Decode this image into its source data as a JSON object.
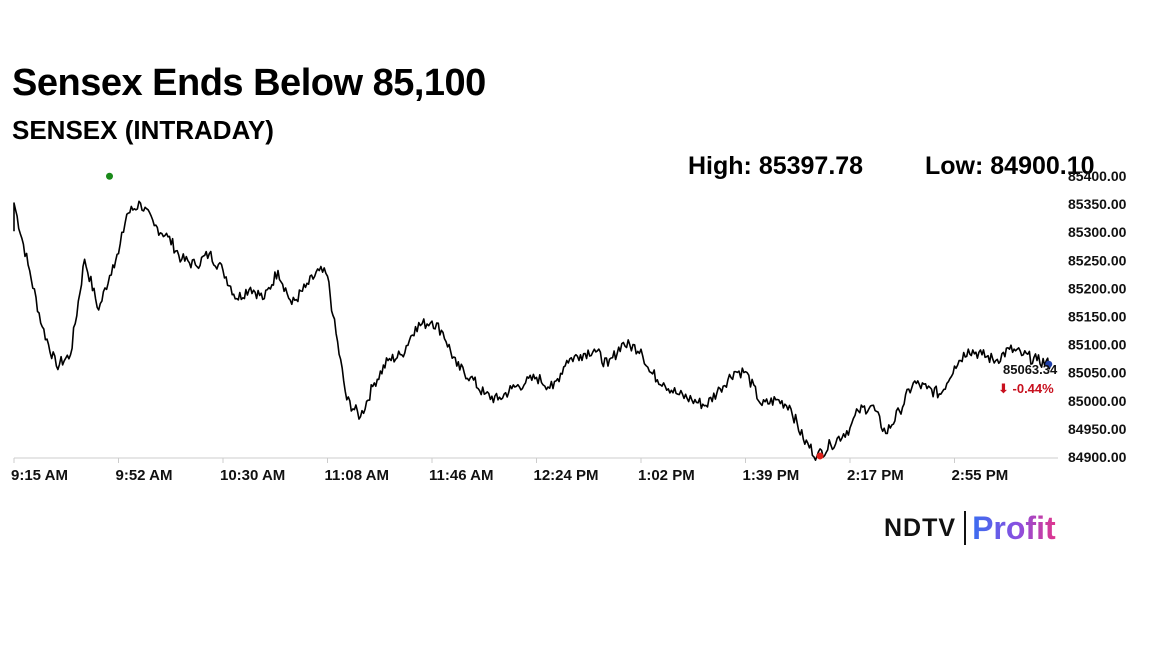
{
  "header": {
    "title": "Sensex Ends Below 85,100",
    "subtitle": "SENSEX (INTRADAY)",
    "high_text": "High: 85397.78",
    "low_text": "Low: 84900.10"
  },
  "brand": {
    "name": "NDTV",
    "product": "Profit"
  },
  "chart_data": {
    "type": "line",
    "title": "Sensex Ends Below 85,100",
    "subtitle": "SENSEX (INTRADAY)",
    "x_tick_labels": [
      "9:15 AM",
      "9:52 AM",
      "10:30 AM",
      "11:08 AM",
      "11:46 AM",
      "12:24 PM",
      "1:02 PM",
      "1:39 PM",
      "2:17 PM",
      "2:55 PM"
    ],
    "y_ticks": [
      84900,
      84950,
      85000,
      85050,
      85100,
      85150,
      85200,
      85250,
      85300,
      85350,
      85400
    ],
    "y_tick_labels": [
      "84900.00",
      "84950.00",
      "85000.00",
      "85050.00",
      "85100.00",
      "85150.00",
      "85200.00",
      "85250.00",
      "85300.00",
      "85350.00",
      "85400.00"
    ],
    "ylim": [
      84900,
      85400
    ],
    "y_axis_position": "right",
    "grid": false,
    "high": 85397.78,
    "low": 84900.1,
    "last_value": 85063.34,
    "last_value_label": "85063.34",
    "change_label": "⬇ -0.44%",
    "colors": {
      "line": "#000000",
      "high_marker": "#1a8a1a",
      "low_marker": "#e0201a",
      "last_marker": "#1f3fa8",
      "change": "#c8101e",
      "axis": "#cccccc"
    },
    "series": [
      {
        "x": [
          "9:15 AM",
          "9:20 AM",
          "9:25 AM",
          "9:30 AM",
          "9:35 AM",
          "9:40 AM",
          "9:45 AM",
          "9:50 AM",
          "9:52 AM",
          "9:55 AM",
          "10:00 AM",
          "10:05 AM",
          "10:10 AM",
          "10:15 AM",
          "10:20 AM",
          "10:25 AM",
          "10:30 AM",
          "10:35 AM",
          "10:40 AM",
          "10:45 AM",
          "10:50 AM",
          "10:55 AM",
          "11:00 AM",
          "11:05 AM",
          "11:08 AM",
          "11:10 AM",
          "11:15 AM",
          "11:20 AM",
          "11:25 AM",
          "11:30 AM",
          "11:35 AM",
          "11:40 AM",
          "11:46 AM",
          "11:50 AM",
          "11:55 AM",
          "12:00 PM",
          "12:05 PM",
          "12:10 PM",
          "12:15 PM",
          "12:20 PM",
          "12:24 PM",
          "12:30 PM",
          "12:35 PM",
          "12:40 PM",
          "12:45 PM",
          "12:50 PM",
          "12:55 PM",
          "1:02 PM",
          "1:05 PM",
          "1:10 PM",
          "1:15 PM",
          "1:20 PM",
          "1:25 PM",
          "1:30 PM",
          "1:35 PM",
          "1:39 PM",
          "1:45 PM",
          "1:50 PM",
          "1:55 PM",
          "2:00 PM",
          "2:05 PM",
          "2:10 PM",
          "2:17 PM",
          "2:20 PM",
          "2:25 PM",
          "2:30 PM",
          "2:35 PM",
          "2:40 PM",
          "2:45 PM",
          "2:50 PM",
          "2:55 PM",
          "3:00 PM",
          "3:05 PM",
          "3:10 PM",
          "3:15 PM",
          "3:20 PM",
          "3:25 PM",
          "3:30 PM"
        ],
        "values": [
          85350,
          85240,
          85130,
          85060,
          85080,
          85250,
          85160,
          85240,
          85260,
          85330,
          85350,
          85310,
          85290,
          85250,
          85240,
          85260,
          85230,
          85180,
          85200,
          85180,
          85230,
          85170,
          85200,
          85230,
          85220,
          85150,
          85000,
          84970,
          85030,
          85070,
          85080,
          85130,
          85140,
          85120,
          85060,
          85040,
          85010,
          85000,
          85020,
          85030,
          85040,
          85020,
          85070,
          85080,
          85090,
          85060,
          85100,
          85090,
          85050,
          85030,
          85010,
          85000,
          84990,
          85020,
          85050,
          85050,
          84990,
          85000,
          84990,
          84930,
          84900,
          84920,
          84950,
          84980,
          84990,
          84940,
          84980,
          85030,
          85020,
          85010,
          85060,
          85090,
          85080,
          85070,
          85090,
          85080,
          85070,
          85063.34
        ]
      }
    ]
  }
}
